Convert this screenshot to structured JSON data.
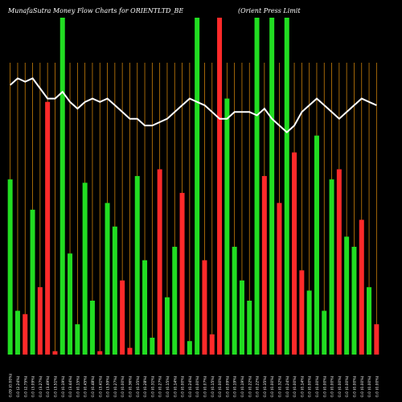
{
  "title": {
    "left": "MunafaSutra  Money Flow  Charts for ORIENTLTD_BE",
    "right": "(Orient Press Limit"
  },
  "colors": {
    "background": "#000000",
    "up": "#22dd22",
    "down": "#ff2a2a",
    "grid": "#c87f0a",
    "line": "#ffffff",
    "text": "#ffffff"
  },
  "chart_data": {
    "type": "bar",
    "grid": "vertical",
    "ylim": [
      0,
      100
    ],
    "categories": [
      "0.09 (0.00%)",
      "0.0 (2.24%)",
      "0.0 (2.75%)",
      "0.0 (3.09%)",
      "0.0 (3.27%)",
      "0.0 (3.49%)",
      "0.0 (3.51%)",
      "0.0 (0.19%)",
      "0.0 (3.44%)",
      "0.0 (0.15%)",
      "0.0 (0.45%)",
      "0.0 (0.48%)",
      "0.0 (3.41%)",
      "0.0 (3.59%)",
      "0.0 (0.27%)",
      "0.0 (0.00%)",
      "0.0 (0.36%)",
      "0.0 (0.35%)",
      "0.0 (0.28%)",
      "0.0 (0.31%)",
      "0.0 (0.27%)",
      "0.0 (0.15%)",
      "0.0 (0.14%)",
      "0.0 (0.00%)",
      "0.0 (0.24%)",
      "0.0 (0.00%)",
      "0.0 (0.07%)",
      "0.0 (0.15%)",
      "0.0 (0.00%)",
      "0.0 (0.09%)",
      "0.0 (0.19%)",
      "0.0 (0.19%)",
      "0.0 (0.22%)",
      "0.0 (0.22%)",
      "0.0 (0.35%)",
      "0.0 (0.00%)",
      "0.0 (0.32%)",
      "0.0 (0.24%)",
      "0.0 (0.00%)",
      "0.0 (0.14%)",
      "0.0 (0.00%)",
      "0.0 (0.00%)",
      "0.0 (0.00%)",
      "0.0 (0.00%)",
      "0.0 (0.00%)",
      "0.0 (0.00%)",
      "0.0 (0.00%)",
      "0.0 (0.00%)",
      "0.0 (0.00%)",
      "0.0 (0.00%)"
    ],
    "values": [
      52,
      13,
      12,
      43,
      20,
      75,
      1,
      100,
      30,
      9,
      51,
      16,
      1,
      45,
      38,
      22,
      2,
      53,
      28,
      5,
      55,
      17,
      32,
      48,
      4,
      100,
      28,
      6,
      100,
      76,
      32,
      22,
      16,
      100,
      53,
      100,
      45,
      100,
      60,
      25,
      19,
      65,
      13,
      52,
      55,
      35,
      32,
      40,
      20,
      9
    ],
    "directions": [
      "up",
      "up",
      "down",
      "up",
      "down",
      "down",
      "down",
      "up",
      "up",
      "up",
      "up",
      "up",
      "down",
      "up",
      "up",
      "down",
      "down",
      "up",
      "up",
      "up",
      "down",
      "up",
      "up",
      "down",
      "up",
      "up",
      "down",
      "down",
      "down",
      "up",
      "up",
      "up",
      "up",
      "up",
      "down",
      "up",
      "down",
      "up",
      "down",
      "down",
      "up",
      "up",
      "up",
      "up",
      "down",
      "up",
      "up",
      "down",
      "up",
      "down"
    ],
    "line": [
      80,
      82,
      81,
      82,
      79,
      76,
      76,
      78,
      75,
      73,
      75,
      76,
      75,
      76,
      74,
      72,
      70,
      70,
      68,
      68,
      69,
      70,
      72,
      74,
      76,
      75,
      74,
      72,
      70,
      70,
      72,
      72,
      72,
      71,
      73,
      70,
      68,
      66,
      68,
      72,
      74,
      76,
      74,
      72,
      70,
      72,
      74,
      76,
      75,
      74
    ]
  }
}
